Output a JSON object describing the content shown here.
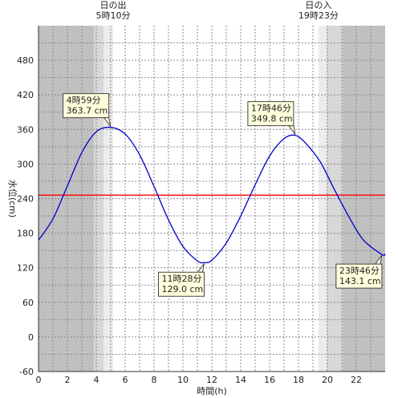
{
  "chart_data": {
    "type": "line",
    "xlabel": "時間(h)",
    "ylabel": "水位(cm)",
    "xlim": [
      0,
      24
    ],
    "ylim": [
      -60,
      540
    ],
    "x_ticks": [
      0,
      2,
      4,
      6,
      8,
      10,
      12,
      14,
      16,
      18,
      20,
      22
    ],
    "y_ticks": [
      -60,
      0,
      60,
      120,
      180,
      240,
      300,
      360,
      420,
      480
    ],
    "reference_line": {
      "value": 246,
      "color": "#ff0000"
    },
    "series": [
      {
        "color": "#0000cc",
        "x": [
          0,
          1,
          2,
          3,
          4,
          4.98,
          6,
          7,
          8,
          9,
          10,
          11,
          11.47,
          12,
          13,
          14,
          15,
          16,
          17,
          17.77,
          18.5,
          19.5,
          20.5,
          21.5,
          22.5,
          23.77,
          24
        ],
        "y": [
          168,
          205,
          262,
          320,
          356,
          363.7,
          352,
          316,
          261,
          203,
          157,
          132,
          129.0,
          133,
          163,
          210,
          264,
          314,
          344,
          349.8,
          336,
          304,
          255,
          208,
          168,
          143.1,
          144
        ]
      }
    ],
    "annotations": [
      {
        "time": "4時59分",
        "value": "363.7 cm",
        "x": 4.98,
        "y": 363.7
      },
      {
        "time": "11時28分",
        "value": "129.0 cm",
        "x": 11.47,
        "y": 129.0
      },
      {
        "time": "17時46分",
        "value": "349.8 cm",
        "x": 17.77,
        "y": 349.8
      },
      {
        "time": "23時46分",
        "value": "143.1 cm",
        "x": 23.77,
        "y": 143.1
      }
    ],
    "sunrise": {
      "label": "日の出",
      "time": "5時10分",
      "x": 5.17
    },
    "sunset": {
      "label": "日の入",
      "time": "19時23分",
      "x": 19.38
    },
    "night_color": "#c0c0c0",
    "twilight_colors": [
      "#d8d8d8",
      "#ececec"
    ],
    "grid": true
  }
}
